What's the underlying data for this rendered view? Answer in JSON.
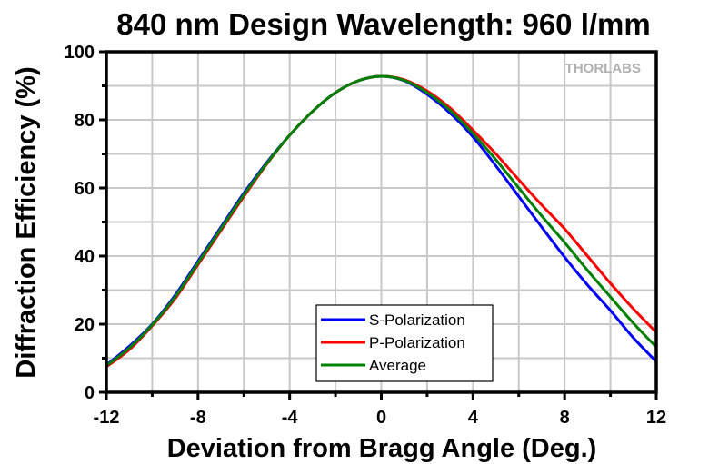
{
  "chart_data": {
    "type": "line",
    "title": "840 nm Design Wavelength: 960 l/mm",
    "xlabel": "Deviation from Bragg Angle (Deg.)",
    "ylabel": "Diffraction Efficiency (%)",
    "xlim": [
      -12,
      12
    ],
    "ylim": [
      0,
      100
    ],
    "xticks": [
      -12,
      -8,
      -4,
      0,
      4,
      8,
      12
    ],
    "yticks": [
      0,
      20,
      40,
      60,
      80,
      100
    ],
    "grid": true,
    "legend_position": "bottom-center",
    "watermark": "THORLABS",
    "x": [
      -12,
      -11,
      -10,
      -9,
      -8,
      -7,
      -6,
      -5,
      -4,
      -3,
      -2,
      -1,
      0,
      1,
      2,
      3,
      4,
      5,
      6,
      7,
      8,
      9,
      10,
      11,
      12
    ],
    "series": [
      {
        "name": "S-Polarization",
        "color": "#0000ff",
        "values": [
          8,
          13.5,
          20,
          28.5,
          38.5,
          48.5,
          58.5,
          67.5,
          75.5,
          82.5,
          88,
          91.5,
          92.8,
          91.5,
          87.5,
          82,
          75,
          66.5,
          57.5,
          48.5,
          39.7,
          31.5,
          24,
          16,
          9
        ]
      },
      {
        "name": "P-Polarization",
        "color": "#ff0000",
        "values": [
          7.5,
          12.5,
          19.5,
          27.5,
          37.5,
          47.5,
          57.5,
          67,
          75.5,
          82.5,
          88,
          91.5,
          92.8,
          91.8,
          88.5,
          83.5,
          77,
          70,
          62.4,
          55,
          48,
          40,
          32,
          24.5,
          17.6
        ]
      },
      {
        "name": "Average",
        "color": "#008000",
        "values": [
          7.8,
          13,
          19.8,
          28,
          38,
          48,
          58,
          67.2,
          75.5,
          82.5,
          88,
          91.5,
          92.8,
          91.6,
          88,
          82.8,
          76,
          68.3,
          60,
          51.8,
          44,
          35.8,
          28,
          20.3,
          13.3
        ]
      }
    ]
  }
}
